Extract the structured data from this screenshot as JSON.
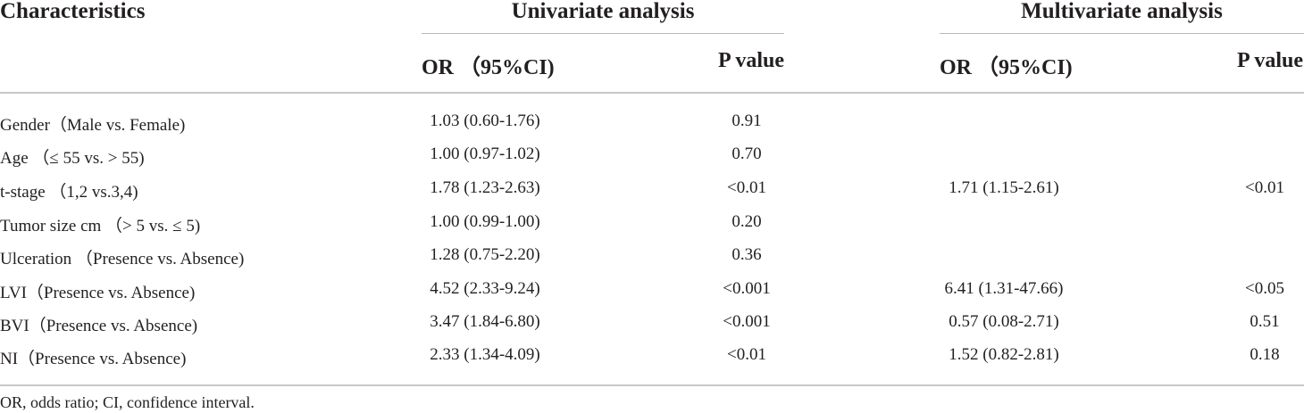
{
  "table": {
    "header": {
      "characteristics": "Characteristics",
      "univariate": "Univariate analysis",
      "multivariate": "Multivariate analysis",
      "uni_or": "OR （95%CI)",
      "uni_p": "P value",
      "multi_or": "OR （95%CI)",
      "multi_p": "P value"
    },
    "rows": [
      {
        "label": "Gender（Male vs. Female)",
        "uni_or": "1.03 (0.60-1.76)",
        "uni_p": "0.91",
        "multi_or": "",
        "multi_p": ""
      },
      {
        "label": "Age （≤ 55 vs. > 55)",
        "uni_or": "1.00 (0.97-1.02)",
        "uni_p": "0.70",
        "multi_or": "",
        "multi_p": ""
      },
      {
        "label": "t-stage （1,2 vs.3,4)",
        "uni_or": "1.78 (1.23-2.63)",
        "uni_p": "<0.01",
        "multi_or": "1.71 (1.15-2.61)",
        "multi_p": "<0.01"
      },
      {
        "label": "Tumor size cm （> 5 vs. ≤ 5)",
        "uni_or": "1.00 (0.99-1.00)",
        "uni_p": "0.20",
        "multi_or": "",
        "multi_p": ""
      },
      {
        "label": "Ulceration （Presence vs. Absence)",
        "uni_or": "1.28 (0.75-2.20)",
        "uni_p": "0.36",
        "multi_or": "",
        "multi_p": ""
      },
      {
        "label": "LVI（Presence vs. Absence)",
        "uni_or": "4.52 (2.33-9.24)",
        "uni_p": "<0.001",
        "multi_or": "6.41 (1.31-47.66)",
        "multi_p": "<0.05"
      },
      {
        "label": "BVI（Presence vs. Absence)",
        "uni_or": "3.47 (1.84-6.80)",
        "uni_p": "<0.001",
        "multi_or": "0.57 (0.08-2.71)",
        "multi_p": "0.51"
      },
      {
        "label": "NI（Presence vs. Absence)",
        "uni_or": "2.33 (1.34-4.09)",
        "uni_p": "<0.01",
        "multi_or": "1.52 (0.82-2.81)",
        "multi_p": "0.18"
      }
    ],
    "footnote": "OR, odds ratio; CI, confidence interval."
  }
}
